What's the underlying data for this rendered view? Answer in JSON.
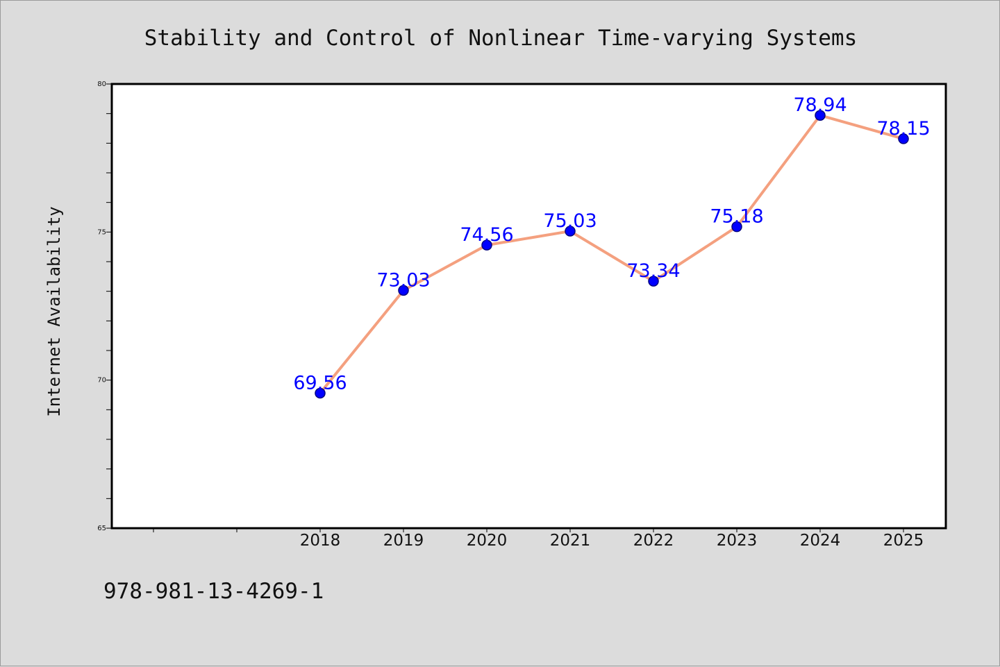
{
  "chart_data": {
    "type": "line",
    "title": "Stability and Control of Nonlinear Time-varying Systems",
    "xlabel": "",
    "ylabel": "Internet Availability",
    "categories": [
      "2018",
      "2019",
      "2020",
      "2021",
      "2022",
      "2023",
      "2024",
      "2025"
    ],
    "series": [
      {
        "values": [
          69.56,
          73.03,
          74.56,
          75.03,
          73.34,
          75.18,
          78.94,
          78.15
        ]
      }
    ],
    "data_labels": [
      "69.56",
      "73.03",
      "74.56",
      "75.03",
      "73.34",
      "75.18",
      "78.94",
      "78.15"
    ],
    "ylim": [
      65,
      80
    ],
    "y_ticks": [
      "65",
      "70",
      "75",
      "80"
    ],
    "grid": false,
    "colors": {
      "line": "#f4a07f",
      "marker": "#0000ff",
      "marker_edge": "#000080",
      "label": "#0000ff"
    }
  },
  "footer": {
    "isbn": "978-981-13-4269-1"
  }
}
